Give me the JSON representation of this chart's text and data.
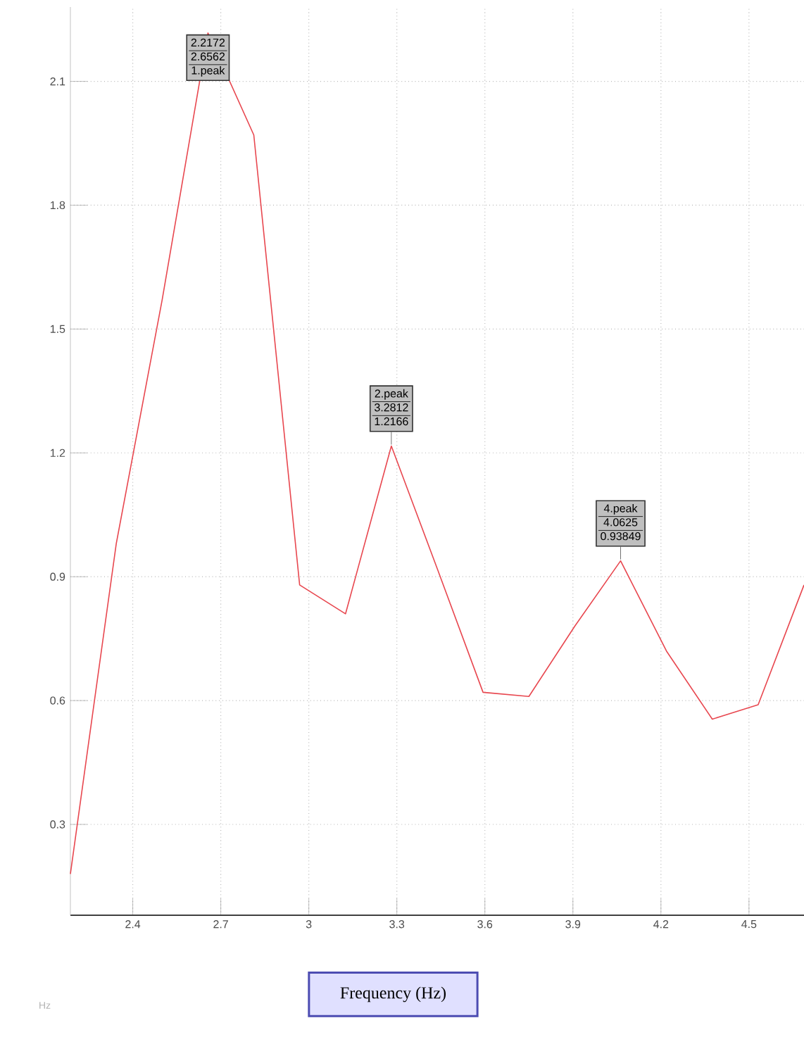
{
  "chart_data": {
    "type": "line",
    "xlabel": "Frequency (Hz)",
    "x": [
      2.1875,
      2.34375,
      2.5,
      2.65625,
      2.8125,
      2.96875,
      3.125,
      3.28125,
      3.4375,
      3.59375,
      3.75,
      3.90625,
      4.0625,
      4.21875,
      4.375,
      4.53125,
      4.6875
    ],
    "series": [
      {
        "color": "#e8474f",
        "values": [
          0.18,
          0.98,
          1.57,
          2.2172,
          1.97,
          0.88,
          0.81,
          1.2166,
          0.92,
          0.62,
          0.61,
          0.78,
          0.93849,
          0.72,
          0.555,
          0.59,
          0.88
        ]
      }
    ],
    "xlim": [
      2.1875,
      4.6875
    ],
    "ylim": [
      0.08,
      2.28
    ],
    "xticks": [
      2.4,
      2.7,
      3,
      3.3,
      3.6,
      3.9,
      4.2,
      4.5
    ],
    "yticks": [
      0.3,
      0.6,
      0.9,
      1.2,
      1.5,
      1.8,
      2.1
    ],
    "grid": true,
    "marker": "none",
    "line_style": "solid",
    "annotations": [
      "Hz",
      {
        "text": "2.2172",
        "x": 2.65625,
        "y": 2.2172
      },
      "2.6562",
      "1.peak",
      {
        "text": "1.2166",
        "x": 3.28125,
        "y": 1.2166
      },
      "2.peak",
      "3.2812",
      {
        "text": "0.93849",
        "x": 4.0625,
        "y": 0.93849
      },
      "4.peak",
      "4.0625"
    ]
  }
}
